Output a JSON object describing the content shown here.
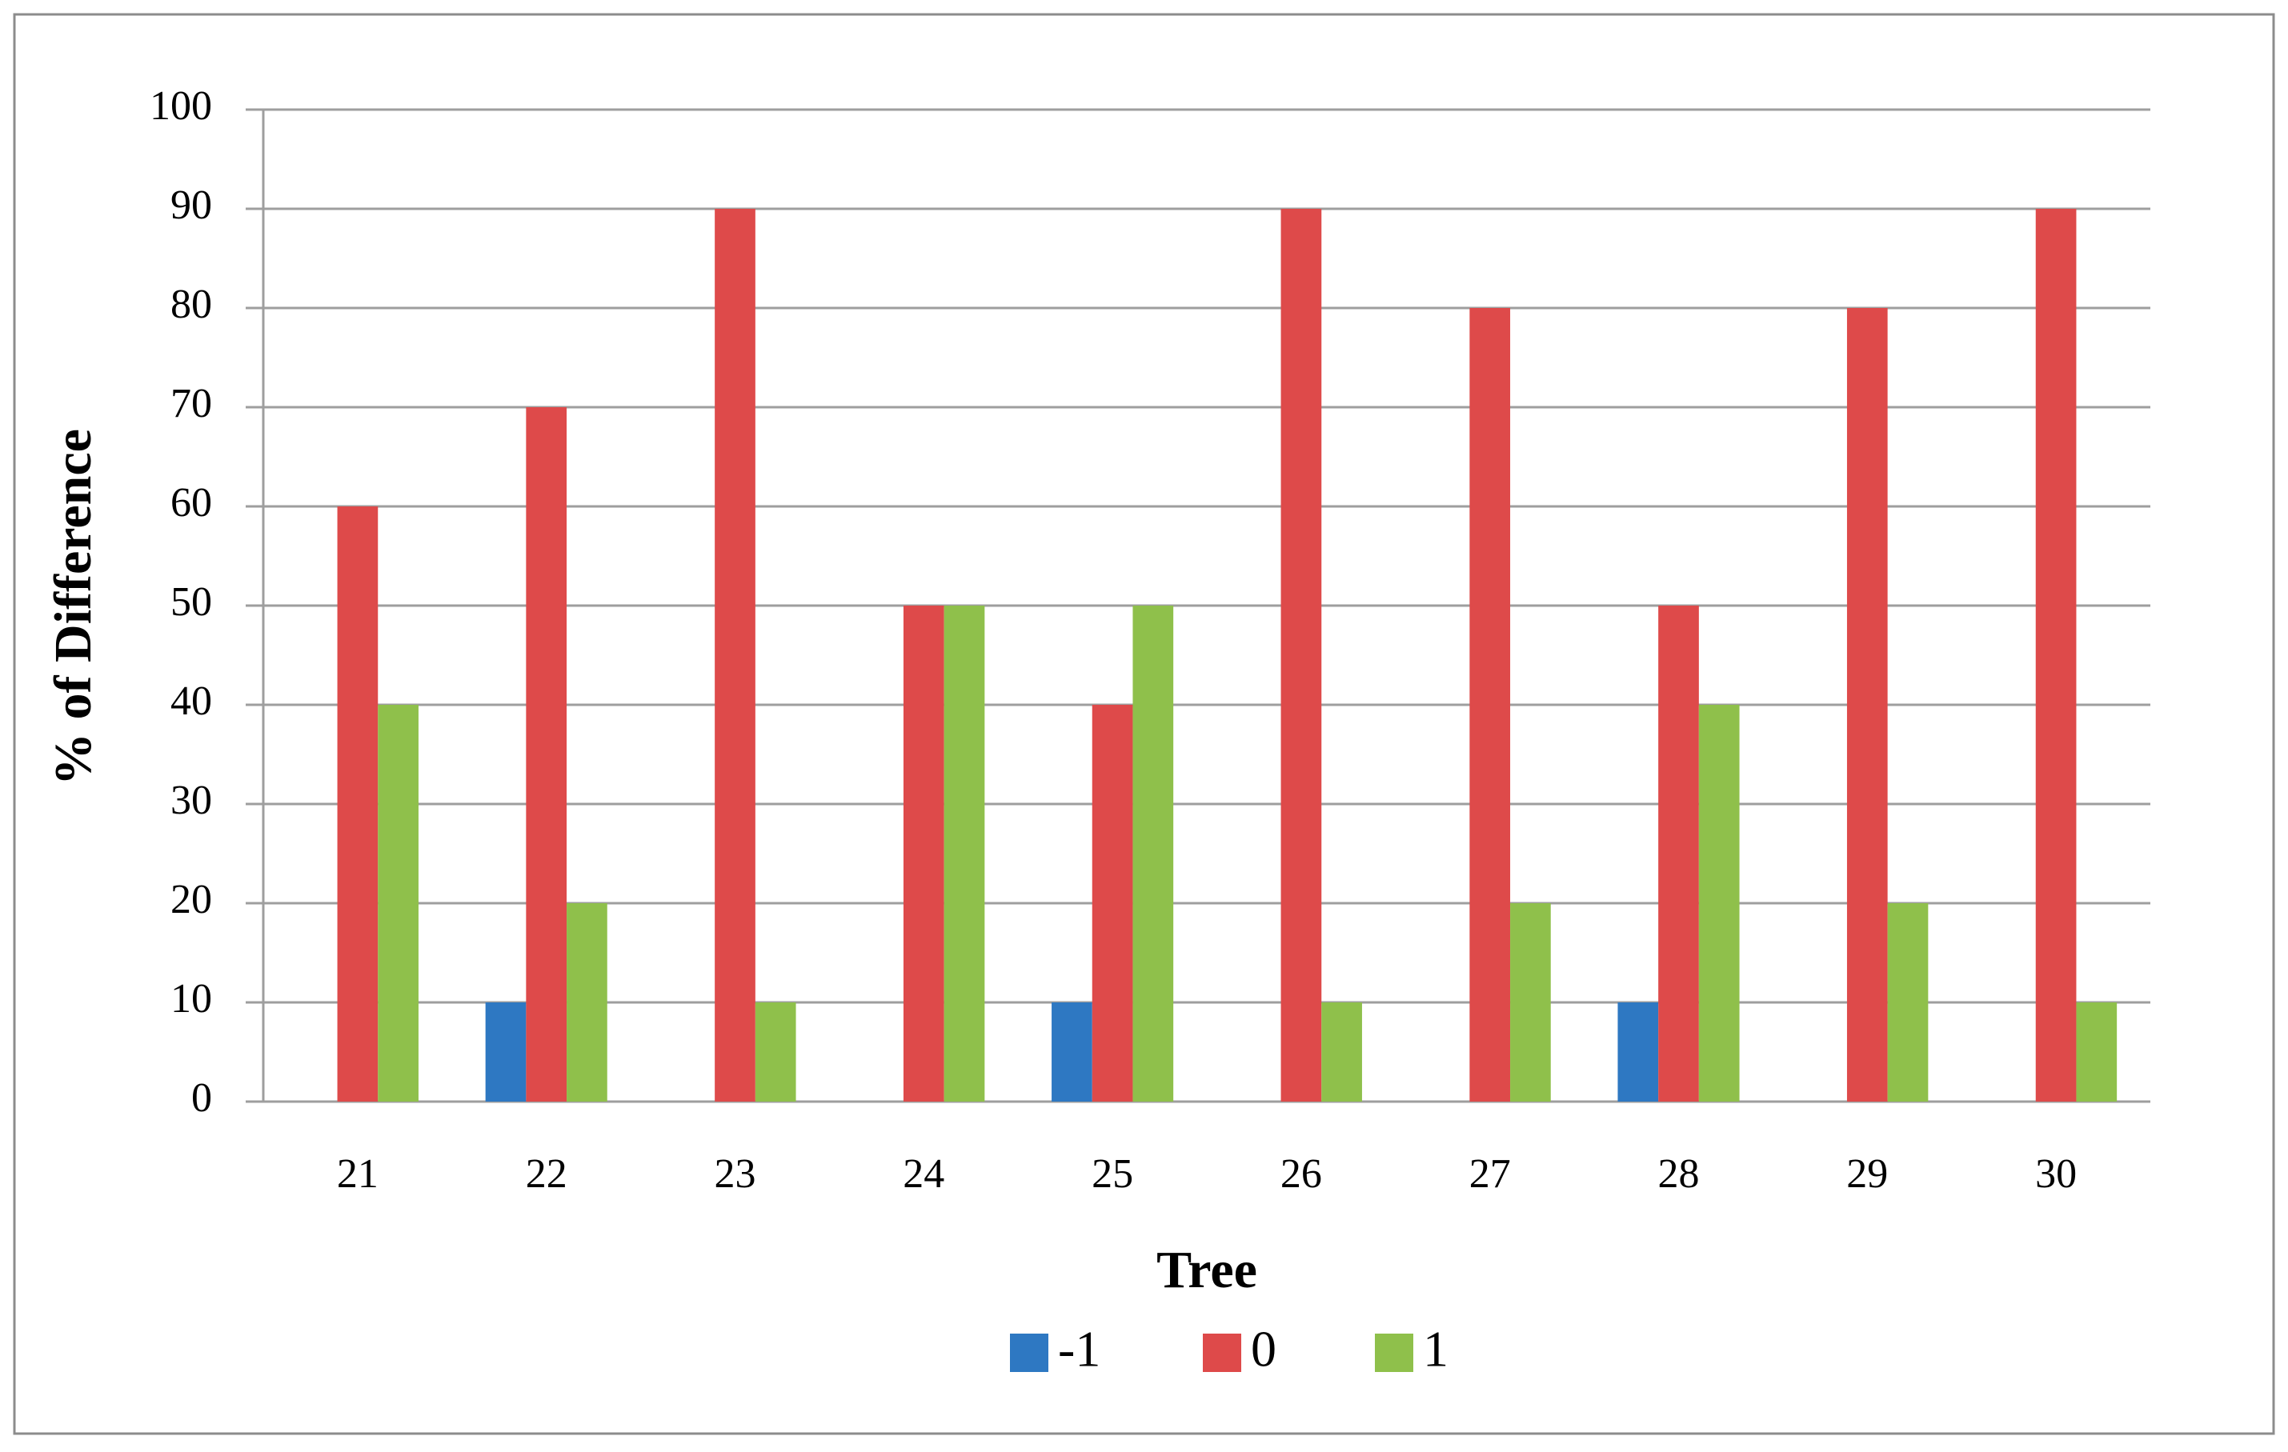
{
  "chart_data": {
    "type": "bar",
    "x_label": "Tree",
    "y_label": "% of Difference",
    "categories": [
      "21",
      "22",
      "23",
      "24",
      "25",
      "26",
      "27",
      "28",
      "29",
      "30"
    ],
    "series": [
      {
        "name": "-1",
        "color": "#2e78c2",
        "values": [
          0,
          10,
          0,
          0,
          10,
          0,
          0,
          10,
          0,
          0
        ]
      },
      {
        "name": "0",
        "color": "#de4a4a",
        "values": [
          60,
          70,
          90,
          50,
          40,
          90,
          80,
          50,
          80,
          90
        ]
      },
      {
        "name": "1",
        "color": "#8fc04b",
        "values": [
          40,
          20,
          10,
          50,
          50,
          10,
          20,
          40,
          20,
          10
        ]
      }
    ],
    "ylim": [
      0,
      100
    ],
    "yticks": [
      0,
      10,
      20,
      30,
      40,
      50,
      60,
      70,
      80,
      90,
      100
    ],
    "grid": true,
    "legend": "bottom"
  }
}
